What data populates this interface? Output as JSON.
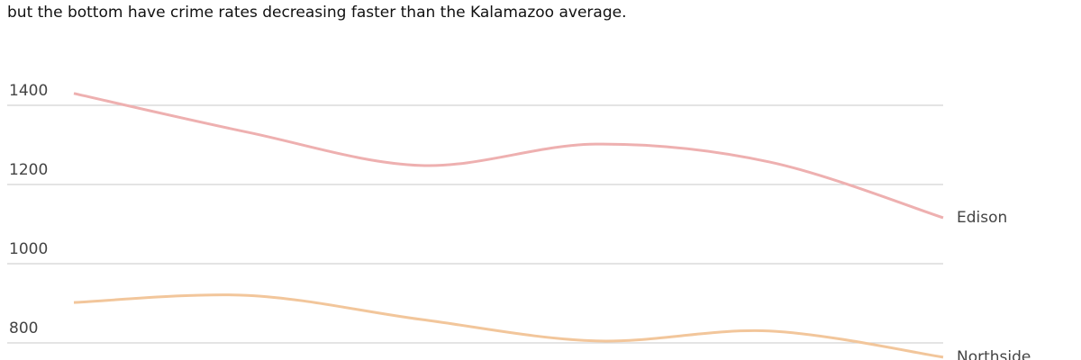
{
  "chart_data": {
    "type": "line",
    "subtitle": "but the bottom have crime rates decreasing faster than the Kalamazoo average.",
    "categories": [
      null,
      null,
      null,
      null,
      null,
      null
    ],
    "series": [
      {
        "name": "Edison",
        "color": "#eeb0b0",
        "values": [
          1430,
          1332,
          1248,
          1302,
          1257,
          1116
        ]
      },
      {
        "name": "Northside",
        "color": "#f2c69b",
        "values": [
          902,
          920,
          859,
          805,
          830,
          764
        ]
      }
    ],
    "ylim": [
      750,
      1650
    ],
    "yticks": [
      800,
      1000,
      1200,
      1400
    ],
    "grid": true
  }
}
